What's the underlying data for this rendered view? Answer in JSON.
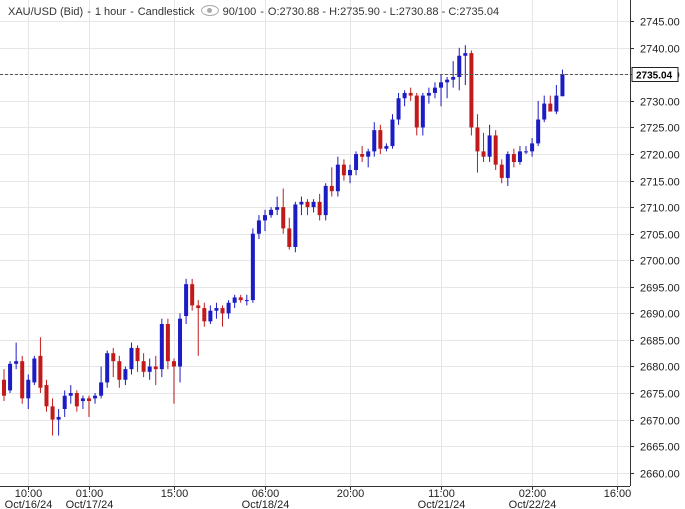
{
  "header": {
    "symbol": "XAU/USD (Bid)",
    "separator1": "-",
    "interval": "1 hour",
    "separator2": "-",
    "chart_type_label": "Candlestick",
    "visibility_icon": "eye-icon",
    "range": "90/100",
    "separator3": "-",
    "ohlc": "O:2730.88 - H:2735.90 - L:2730.88 - C:2735.04"
  },
  "colors": {
    "up": "#1c1cc4",
    "down": "#c21a1a",
    "grid": "#e6e6e6",
    "axis": "#333333",
    "price_line": "#555555"
  },
  "chart_data": {
    "type": "candlestick",
    "title": "",
    "xlabel": "",
    "ylabel": "",
    "ylim": [
      2657.5,
      2749
    ],
    "y_ticks": [
      2660,
      2665,
      2670,
      2675,
      2680,
      2685,
      2690,
      2695,
      2700,
      2705,
      2710,
      2715,
      2720,
      2725,
      2730,
      2735,
      2740,
      2745
    ],
    "grid": true,
    "last_price": 2735.04,
    "last_price_label": "2735.04",
    "x_tick_labels": [
      {
        "index": 4,
        "time": "10:00",
        "date": "Oct/16/24"
      },
      {
        "index": 14,
        "time": "01:00",
        "date": "Oct/17/24"
      },
      {
        "index": 28,
        "time": "15:00",
        "date": ""
      },
      {
        "index": 43,
        "time": "06:00",
        "date": "Oct/18/24"
      },
      {
        "index": 57,
        "time": "20:00",
        "date": ""
      },
      {
        "index": 72,
        "time": "11:00",
        "date": "Oct/21/24"
      },
      {
        "index": 87,
        "time": "02:00",
        "date": "Oct/22/24"
      },
      {
        "index": 101,
        "time": "16:00",
        "date": ""
      }
    ],
    "candles": [
      {
        "o": 2677.5,
        "h": 2679.5,
        "l": 2673.5,
        "c": 2674.5
      },
      {
        "o": 2675.5,
        "h": 2681.0,
        "l": 2675.0,
        "c": 2680.5
      },
      {
        "o": 2680.5,
        "h": 2684.5,
        "l": 2679.5,
        "c": 2681.0
      },
      {
        "o": 2681.0,
        "h": 2682.0,
        "l": 2673.0,
        "c": 2674.0
      },
      {
        "o": 2674.0,
        "h": 2678.5,
        "l": 2672.0,
        "c": 2677.5
      },
      {
        "o": 2677.0,
        "h": 2682.0,
        "l": 2676.5,
        "c": 2681.5
      },
      {
        "o": 2682.0,
        "h": 2685.5,
        "l": 2675.0,
        "c": 2676.0
      },
      {
        "o": 2676.5,
        "h": 2677.5,
        "l": 2671.5,
        "c": 2672.5
      },
      {
        "o": 2672.5,
        "h": 2674.0,
        "l": 2667.0,
        "c": 2670.0
      },
      {
        "o": 2670.0,
        "h": 2672.0,
        "l": 2667.0,
        "c": 2670.5
      },
      {
        "o": 2672.0,
        "h": 2675.5,
        "l": 2670.5,
        "c": 2674.5
      },
      {
        "o": 2674.5,
        "h": 2676.5,
        "l": 2673.0,
        "c": 2675.0
      },
      {
        "o": 2675.0,
        "h": 2675.5,
        "l": 2671.5,
        "c": 2672.5
      },
      {
        "o": 2673.5,
        "h": 2674.5,
        "l": 2672.0,
        "c": 2674.0
      },
      {
        "o": 2674.0,
        "h": 2674.5,
        "l": 2670.5,
        "c": 2673.5
      },
      {
        "o": 2674.0,
        "h": 2675.0,
        "l": 2673.0,
        "c": 2674.5
      },
      {
        "o": 2674.5,
        "h": 2680.0,
        "l": 2674.0,
        "c": 2677.0
      },
      {
        "o": 2677.0,
        "h": 2683.0,
        "l": 2676.0,
        "c": 2682.5
      },
      {
        "o": 2682.5,
        "h": 2683.5,
        "l": 2678.0,
        "c": 2681.0
      },
      {
        "o": 2681.0,
        "h": 2682.0,
        "l": 2676.0,
        "c": 2677.5
      },
      {
        "o": 2677.5,
        "h": 2680.0,
        "l": 2676.5,
        "c": 2679.5
      },
      {
        "o": 2679.5,
        "h": 2684.5,
        "l": 2678.5,
        "c": 2683.5
      },
      {
        "o": 2683.5,
        "h": 2684.0,
        "l": 2679.0,
        "c": 2681.0
      },
      {
        "o": 2681.0,
        "h": 2682.5,
        "l": 2678.0,
        "c": 2679.0
      },
      {
        "o": 2679.0,
        "h": 2681.5,
        "l": 2677.5,
        "c": 2680.0
      },
      {
        "o": 2680.0,
        "h": 2682.0,
        "l": 2676.5,
        "c": 2679.5
      },
      {
        "o": 2679.5,
        "h": 2689.0,
        "l": 2678.0,
        "c": 2688.0
      },
      {
        "o": 2688.0,
        "h": 2689.0,
        "l": 2679.5,
        "c": 2681.0
      },
      {
        "o": 2681.0,
        "h": 2681.5,
        "l": 2673.0,
        "c": 2680.0
      },
      {
        "o": 2680.0,
        "h": 2690.0,
        "l": 2677.0,
        "c": 2689.0
      },
      {
        "o": 2689.5,
        "h": 2696.5,
        "l": 2688.0,
        "c": 2695.5
      },
      {
        "o": 2695.5,
        "h": 2696.5,
        "l": 2690.5,
        "c": 2691.5
      },
      {
        "o": 2691.5,
        "h": 2692.5,
        "l": 2682.0,
        "c": 2691.0
      },
      {
        "o": 2691.0,
        "h": 2692.0,
        "l": 2687.5,
        "c": 2688.5
      },
      {
        "o": 2688.5,
        "h": 2691.5,
        "l": 2688.0,
        "c": 2690.5
      },
      {
        "o": 2690.5,
        "h": 2692.0,
        "l": 2689.0,
        "c": 2691.0
      },
      {
        "o": 2691.0,
        "h": 2691.5,
        "l": 2687.5,
        "c": 2690.0
      },
      {
        "o": 2690.0,
        "h": 2692.5,
        "l": 2689.0,
        "c": 2692.0
      },
      {
        "o": 2692.0,
        "h": 2693.5,
        "l": 2691.0,
        "c": 2693.0
      },
      {
        "o": 2693.0,
        "h": 2693.5,
        "l": 2692.0,
        "c": 2692.5
      },
      {
        "o": 2692.5,
        "h": 2693.5,
        "l": 2691.5,
        "c": 2692.5
      },
      {
        "o": 2692.5,
        "h": 2706.0,
        "l": 2692.0,
        "c": 2705.0
      },
      {
        "o": 2705.0,
        "h": 2708.5,
        "l": 2704.0,
        "c": 2707.5
      },
      {
        "o": 2707.5,
        "h": 2709.5,
        "l": 2705.5,
        "c": 2708.5
      },
      {
        "o": 2708.5,
        "h": 2710.0,
        "l": 2708.0,
        "c": 2709.5
      },
      {
        "o": 2709.5,
        "h": 2712.0,
        "l": 2708.5,
        "c": 2710.0
      },
      {
        "o": 2710.0,
        "h": 2713.5,
        "l": 2705.0,
        "c": 2706.0
      },
      {
        "o": 2706.0,
        "h": 2708.0,
        "l": 2702.0,
        "c": 2702.5
      },
      {
        "o": 2702.5,
        "h": 2711.0,
        "l": 2701.5,
        "c": 2710.5
      },
      {
        "o": 2710.5,
        "h": 2712.0,
        "l": 2708.5,
        "c": 2711.0
      },
      {
        "o": 2711.0,
        "h": 2711.5,
        "l": 2708.5,
        "c": 2710.0
      },
      {
        "o": 2710.0,
        "h": 2711.5,
        "l": 2709.0,
        "c": 2711.0
      },
      {
        "o": 2711.0,
        "h": 2712.5,
        "l": 2707.5,
        "c": 2708.5
      },
      {
        "o": 2708.5,
        "h": 2714.5,
        "l": 2707.5,
        "c": 2714.0
      },
      {
        "o": 2714.0,
        "h": 2717.5,
        "l": 2712.0,
        "c": 2713.0
      },
      {
        "o": 2713.0,
        "h": 2719.5,
        "l": 2712.0,
        "c": 2718.0
      },
      {
        "o": 2718.0,
        "h": 2719.0,
        "l": 2715.0,
        "c": 2716.0
      },
      {
        "o": 2716.0,
        "h": 2718.0,
        "l": 2714.5,
        "c": 2717.0
      },
      {
        "o": 2717.0,
        "h": 2720.5,
        "l": 2716.0,
        "c": 2720.0
      },
      {
        "o": 2720.0,
        "h": 2721.5,
        "l": 2718.5,
        "c": 2719.5
      },
      {
        "o": 2719.5,
        "h": 2721.0,
        "l": 2717.5,
        "c": 2720.5
      },
      {
        "o": 2720.5,
        "h": 2726.0,
        "l": 2719.5,
        "c": 2724.5
      },
      {
        "o": 2724.5,
        "h": 2725.5,
        "l": 2720.0,
        "c": 2721.0
      },
      {
        "o": 2721.0,
        "h": 2722.0,
        "l": 2720.5,
        "c": 2721.5
      },
      {
        "o": 2721.5,
        "h": 2727.5,
        "l": 2721.0,
        "c": 2726.5
      },
      {
        "o": 2726.5,
        "h": 2731.5,
        "l": 2725.5,
        "c": 2730.5
      },
      {
        "o": 2730.5,
        "h": 2732.0,
        "l": 2729.0,
        "c": 2731.5
      },
      {
        "o": 2731.5,
        "h": 2732.5,
        "l": 2730.0,
        "c": 2731.0
      },
      {
        "o": 2731.0,
        "h": 2731.5,
        "l": 2723.5,
        "c": 2725.0
      },
      {
        "o": 2725.0,
        "h": 2731.5,
        "l": 2723.5,
        "c": 2731.0
      },
      {
        "o": 2731.0,
        "h": 2732.5,
        "l": 2729.5,
        "c": 2731.5
      },
      {
        "o": 2731.5,
        "h": 2733.5,
        "l": 2730.5,
        "c": 2732.5
      },
      {
        "o": 2732.5,
        "h": 2735.0,
        "l": 2729.0,
        "c": 2733.5
      },
      {
        "o": 2733.5,
        "h": 2734.5,
        "l": 2730.5,
        "c": 2734.0
      },
      {
        "o": 2734.0,
        "h": 2737.5,
        "l": 2732.5,
        "c": 2734.5
      },
      {
        "o": 2734.5,
        "h": 2740.0,
        "l": 2732.0,
        "c": 2738.5
      },
      {
        "o": 2738.5,
        "h": 2740.5,
        "l": 2733.0,
        "c": 2739.0
      },
      {
        "o": 2739.0,
        "h": 2739.5,
        "l": 2723.5,
        "c": 2725.0
      },
      {
        "o": 2725.0,
        "h": 2727.5,
        "l": 2716.5,
        "c": 2720.5
      },
      {
        "o": 2720.5,
        "h": 2724.0,
        "l": 2718.5,
        "c": 2719.5
      },
      {
        "o": 2719.5,
        "h": 2725.5,
        "l": 2718.5,
        "c": 2723.5
      },
      {
        "o": 2723.5,
        "h": 2724.5,
        "l": 2717.0,
        "c": 2718.0
      },
      {
        "o": 2718.0,
        "h": 2719.0,
        "l": 2714.5,
        "c": 2715.5
      },
      {
        "o": 2715.5,
        "h": 2720.5,
        "l": 2714.0,
        "c": 2720.0
      },
      {
        "o": 2720.0,
        "h": 2721.0,
        "l": 2717.5,
        "c": 2718.5
      },
      {
        "o": 2718.5,
        "h": 2721.5,
        "l": 2718.0,
        "c": 2720.5
      },
      {
        "o": 2720.5,
        "h": 2721.5,
        "l": 2720.0,
        "c": 2720.5
      },
      {
        "o": 2720.5,
        "h": 2723.0,
        "l": 2719.5,
        "c": 2722.0
      },
      {
        "o": 2722.0,
        "h": 2730.0,
        "l": 2721.5,
        "c": 2726.5
      },
      {
        "o": 2726.5,
        "h": 2731.0,
        "l": 2726.0,
        "c": 2729.5
      },
      {
        "o": 2729.5,
        "h": 2731.0,
        "l": 2728.5,
        "c": 2728.0
      },
      {
        "o": 2728.0,
        "h": 2733.0,
        "l": 2727.5,
        "c": 2731.0
      },
      {
        "o": 2730.88,
        "h": 2735.9,
        "l": 2730.88,
        "c": 2735.04
      }
    ]
  }
}
